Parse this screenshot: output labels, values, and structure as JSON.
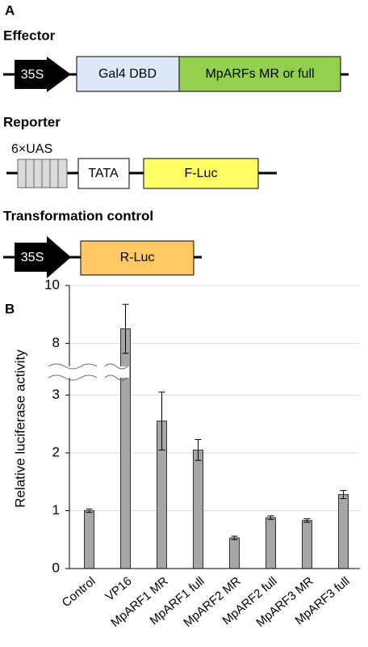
{
  "panel_a": {
    "label": "A",
    "effector": {
      "title": "Effector",
      "promoter": "35S",
      "dbd": "Gal4 DBD",
      "fusion": "MpARFs MR or full"
    },
    "reporter": {
      "title": "Reporter",
      "uas": "6×UAS",
      "tata": "TATA",
      "gene": "F-Luc"
    },
    "control": {
      "title": "Transformation control",
      "promoter": "35S",
      "gene": "R-Luc"
    }
  },
  "chart_data": {
    "type": "bar",
    "panel_label": "B",
    "y_label": "Relative luciferase activity",
    "categories": [
      "Control",
      "VP16",
      "MpARF1 MR",
      "MpARF1 full",
      "MpARF2 MR",
      "MpARF2 full",
      "MpARF3 MR",
      "MpARF3 full"
    ],
    "values": [
      1.0,
      8.5,
      2.55,
      2.05,
      0.53,
      0.88,
      0.83,
      1.28
    ],
    "errors": [
      0.03,
      0.85,
      0.5,
      0.18,
      0.03,
      0.03,
      0.03,
      0.07
    ],
    "color": "#a6a6a6",
    "ylim": [
      0,
      10
    ],
    "y_break": [
      3.3,
      7.2
    ],
    "yticks": [
      0,
      1,
      2,
      3,
      8,
      10
    ],
    "grid": true
  }
}
